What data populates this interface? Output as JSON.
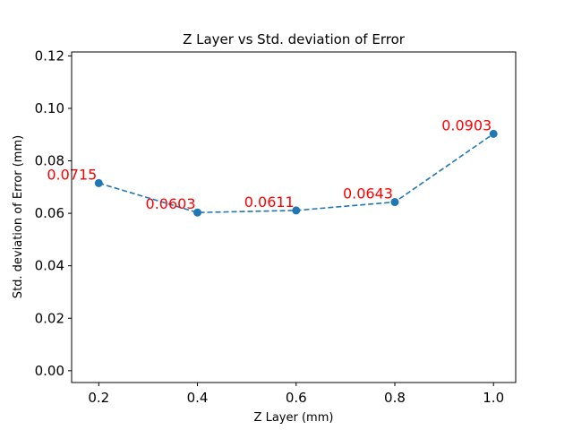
{
  "chart_data": {
    "type": "line",
    "title": "Z Layer vs Std. deviation of Error",
    "xlabel": "Z Layer (mm)",
    "ylabel": "Std. deviation of Error (mm)",
    "x": [
      0.2,
      0.4,
      0.6,
      0.8,
      1.0
    ],
    "series": [
      {
        "values": [
          0.0715,
          0.0603,
          0.0611,
          0.0643,
          0.0903
        ],
        "labels": [
          "0.0715",
          "0.0603",
          "0.0611",
          "0.0643",
          "0.0903"
        ],
        "color": "#1f77b4",
        "line_style": "dashed",
        "marker": "circle",
        "label_color": "#ff0000"
      }
    ],
    "xlim": [
      0.145,
      1.045
    ],
    "ylim": [
      -0.0045,
      0.1215
    ],
    "x_ticks": [
      0.2,
      0.4,
      0.6,
      0.8,
      1.0
    ],
    "x_tick_labels": [
      "0.2",
      "0.4",
      "0.6",
      "0.8",
      "1.0"
    ],
    "y_ticks": [
      0.0,
      0.02,
      0.04,
      0.06,
      0.08,
      0.1,
      0.12
    ],
    "y_tick_labels": [
      "0.00",
      "0.02",
      "0.04",
      "0.06",
      "0.08",
      "0.10",
      "0.12"
    ],
    "grid": false,
    "legend": false
  }
}
